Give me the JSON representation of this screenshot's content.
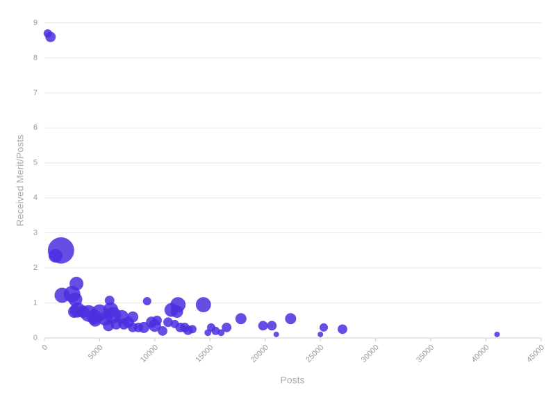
{
  "chart_data": {
    "type": "bubble",
    "xlabel": "Posts",
    "ylabel": "Received Merit/Posts",
    "color": "#4b2fe0",
    "x": [
      300,
      550,
      1500,
      1000,
      1600,
      2500,
      2900,
      2800,
      3000,
      2700,
      3500,
      4000,
      4500,
      5000,
      4600,
      5500,
      6000,
      6200,
      5900,
      5800,
      6500,
      7000,
      7200,
      7600,
      8000,
      8000,
      8500,
      9000,
      9300,
      9700,
      10000,
      10200,
      10700,
      11200,
      11500,
      11800,
      12000,
      12100,
      12300,
      12700,
      13000,
      13400,
      14400,
      14800,
      15100,
      15500,
      16000,
      16500,
      17800,
      19800,
      20600,
      21000,
      22300,
      25000,
      25300,
      27000,
      41000
    ],
    "values": [
      8.7,
      8.6,
      2.5,
      2.35,
      1.22,
      1.25,
      1.55,
      1.1,
      0.8,
      0.75,
      0.75,
      0.7,
      0.6,
      0.72,
      0.5,
      0.55,
      0.8,
      0.65,
      1.07,
      0.35,
      0.4,
      0.6,
      0.4,
      0.45,
      0.6,
      0.3,
      0.3,
      0.3,
      1.05,
      0.45,
      0.35,
      0.5,
      0.2,
      0.45,
      0.8,
      0.4,
      0.75,
      0.95,
      0.3,
      0.3,
      0.22,
      0.25,
      0.95,
      0.15,
      0.3,
      0.2,
      0.15,
      0.3,
      0.55,
      0.35,
      0.35,
      0.1,
      0.55,
      0.1,
      0.3,
      0.25,
      0.1
    ],
    "sizes": [
      9,
      14,
      90,
      25,
      30,
      36,
      25,
      25,
      30,
      20,
      20,
      36,
      30,
      36,
      20,
      25,
      30,
      36,
      12,
      16,
      16,
      25,
      16,
      16,
      16,
      12,
      12,
      16,
      9,
      16,
      20,
      12,
      12,
      12,
      25,
      9,
      20,
      30,
      12,
      12,
      12,
      9,
      30,
      6,
      9,
      9,
      6,
      12,
      16,
      12,
      12,
      4,
      16,
      4,
      9,
      12,
      4
    ],
    "xlim": [
      0,
      45000
    ],
    "xticks": [
      0,
      5000,
      10000,
      15000,
      20000,
      25000,
      30000,
      35000,
      40000,
      45000
    ],
    "ylim": [
      0,
      9
    ],
    "yticks": [
      0,
      1,
      2,
      3,
      4,
      5,
      6,
      7,
      8,
      9
    ],
    "grid": true
  }
}
